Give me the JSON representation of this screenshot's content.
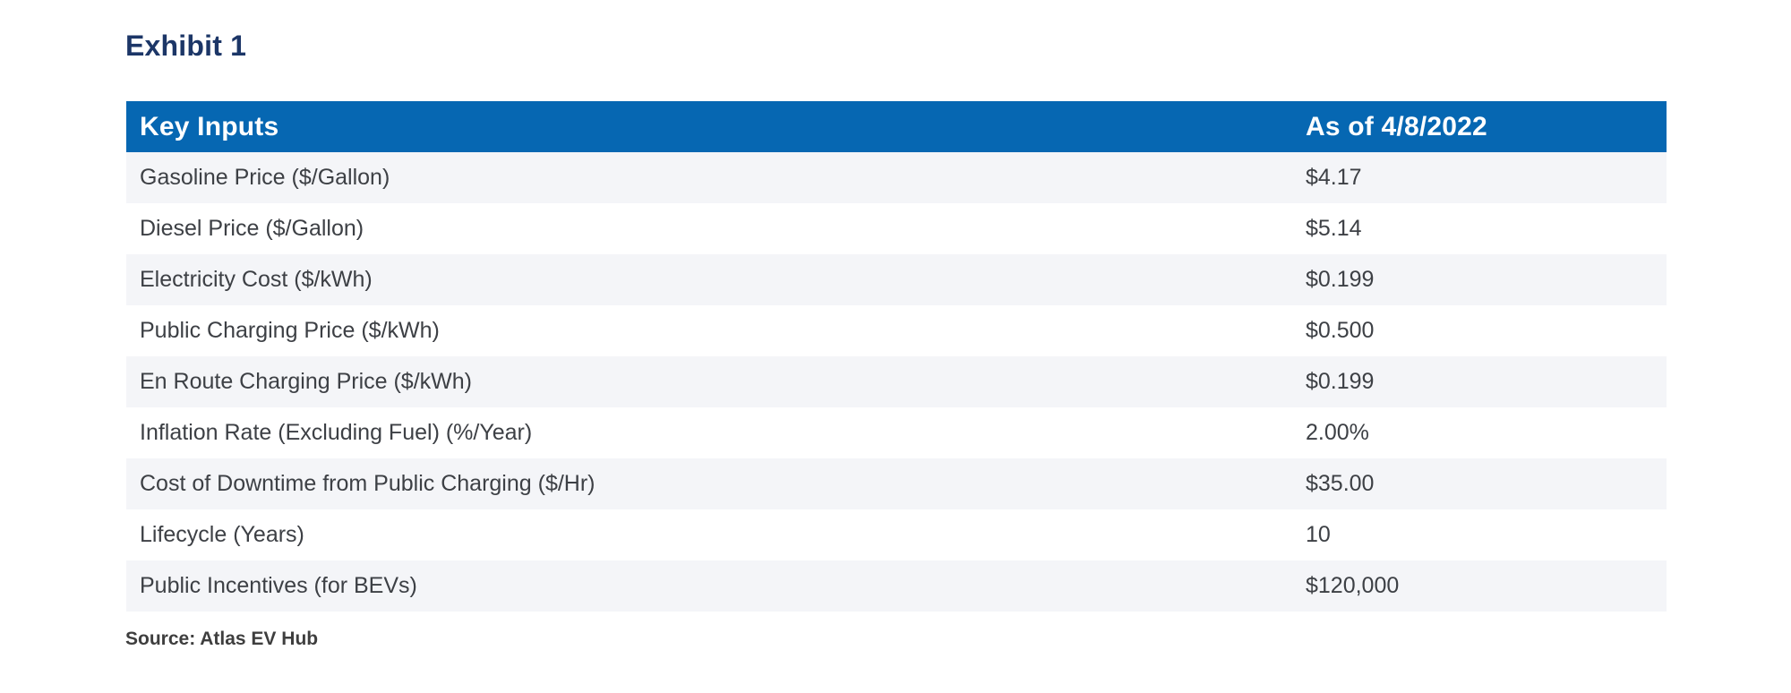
{
  "exhibit": {
    "title": "Exhibit 1"
  },
  "chart_data": {
    "type": "table",
    "title": "Exhibit 1",
    "columns": [
      "Key Inputs",
      "As of 4/8/2022"
    ],
    "rows": [
      [
        "Gasoline Price ($/Gallon)",
        "$4.17"
      ],
      [
        "Diesel Price ($/Gallon)",
        "$5.14"
      ],
      [
        "Electricity Cost ($/kWh)",
        "$0.199"
      ],
      [
        "Public Charging Price ($/kWh)",
        "$0.500"
      ],
      [
        "En Route Charging Price ($/kWh)",
        "$0.199"
      ],
      [
        "Inflation Rate (Excluding Fuel) (%/Year)",
        "2.00%"
      ],
      [
        "Cost of Downtime from Public Charging ($/Hr)",
        "$35.00"
      ],
      [
        "Lifecycle (Years)",
        "10"
      ],
      [
        "Public Incentives (for BEVs)",
        "$120,000"
      ]
    ],
    "source": "Source: Atlas EV Hub",
    "layout": {
      "striped": true,
      "first_data_row_striped": true
    }
  },
  "colors": {
    "page_background": "#ffffff",
    "header_background": "#0667b2",
    "header_text": "#ffffff",
    "title_text": "#1c3667",
    "row_stripe": "#f4f5f8",
    "body_text": "#3d4045",
    "source_text": "#3e3e3e"
  }
}
